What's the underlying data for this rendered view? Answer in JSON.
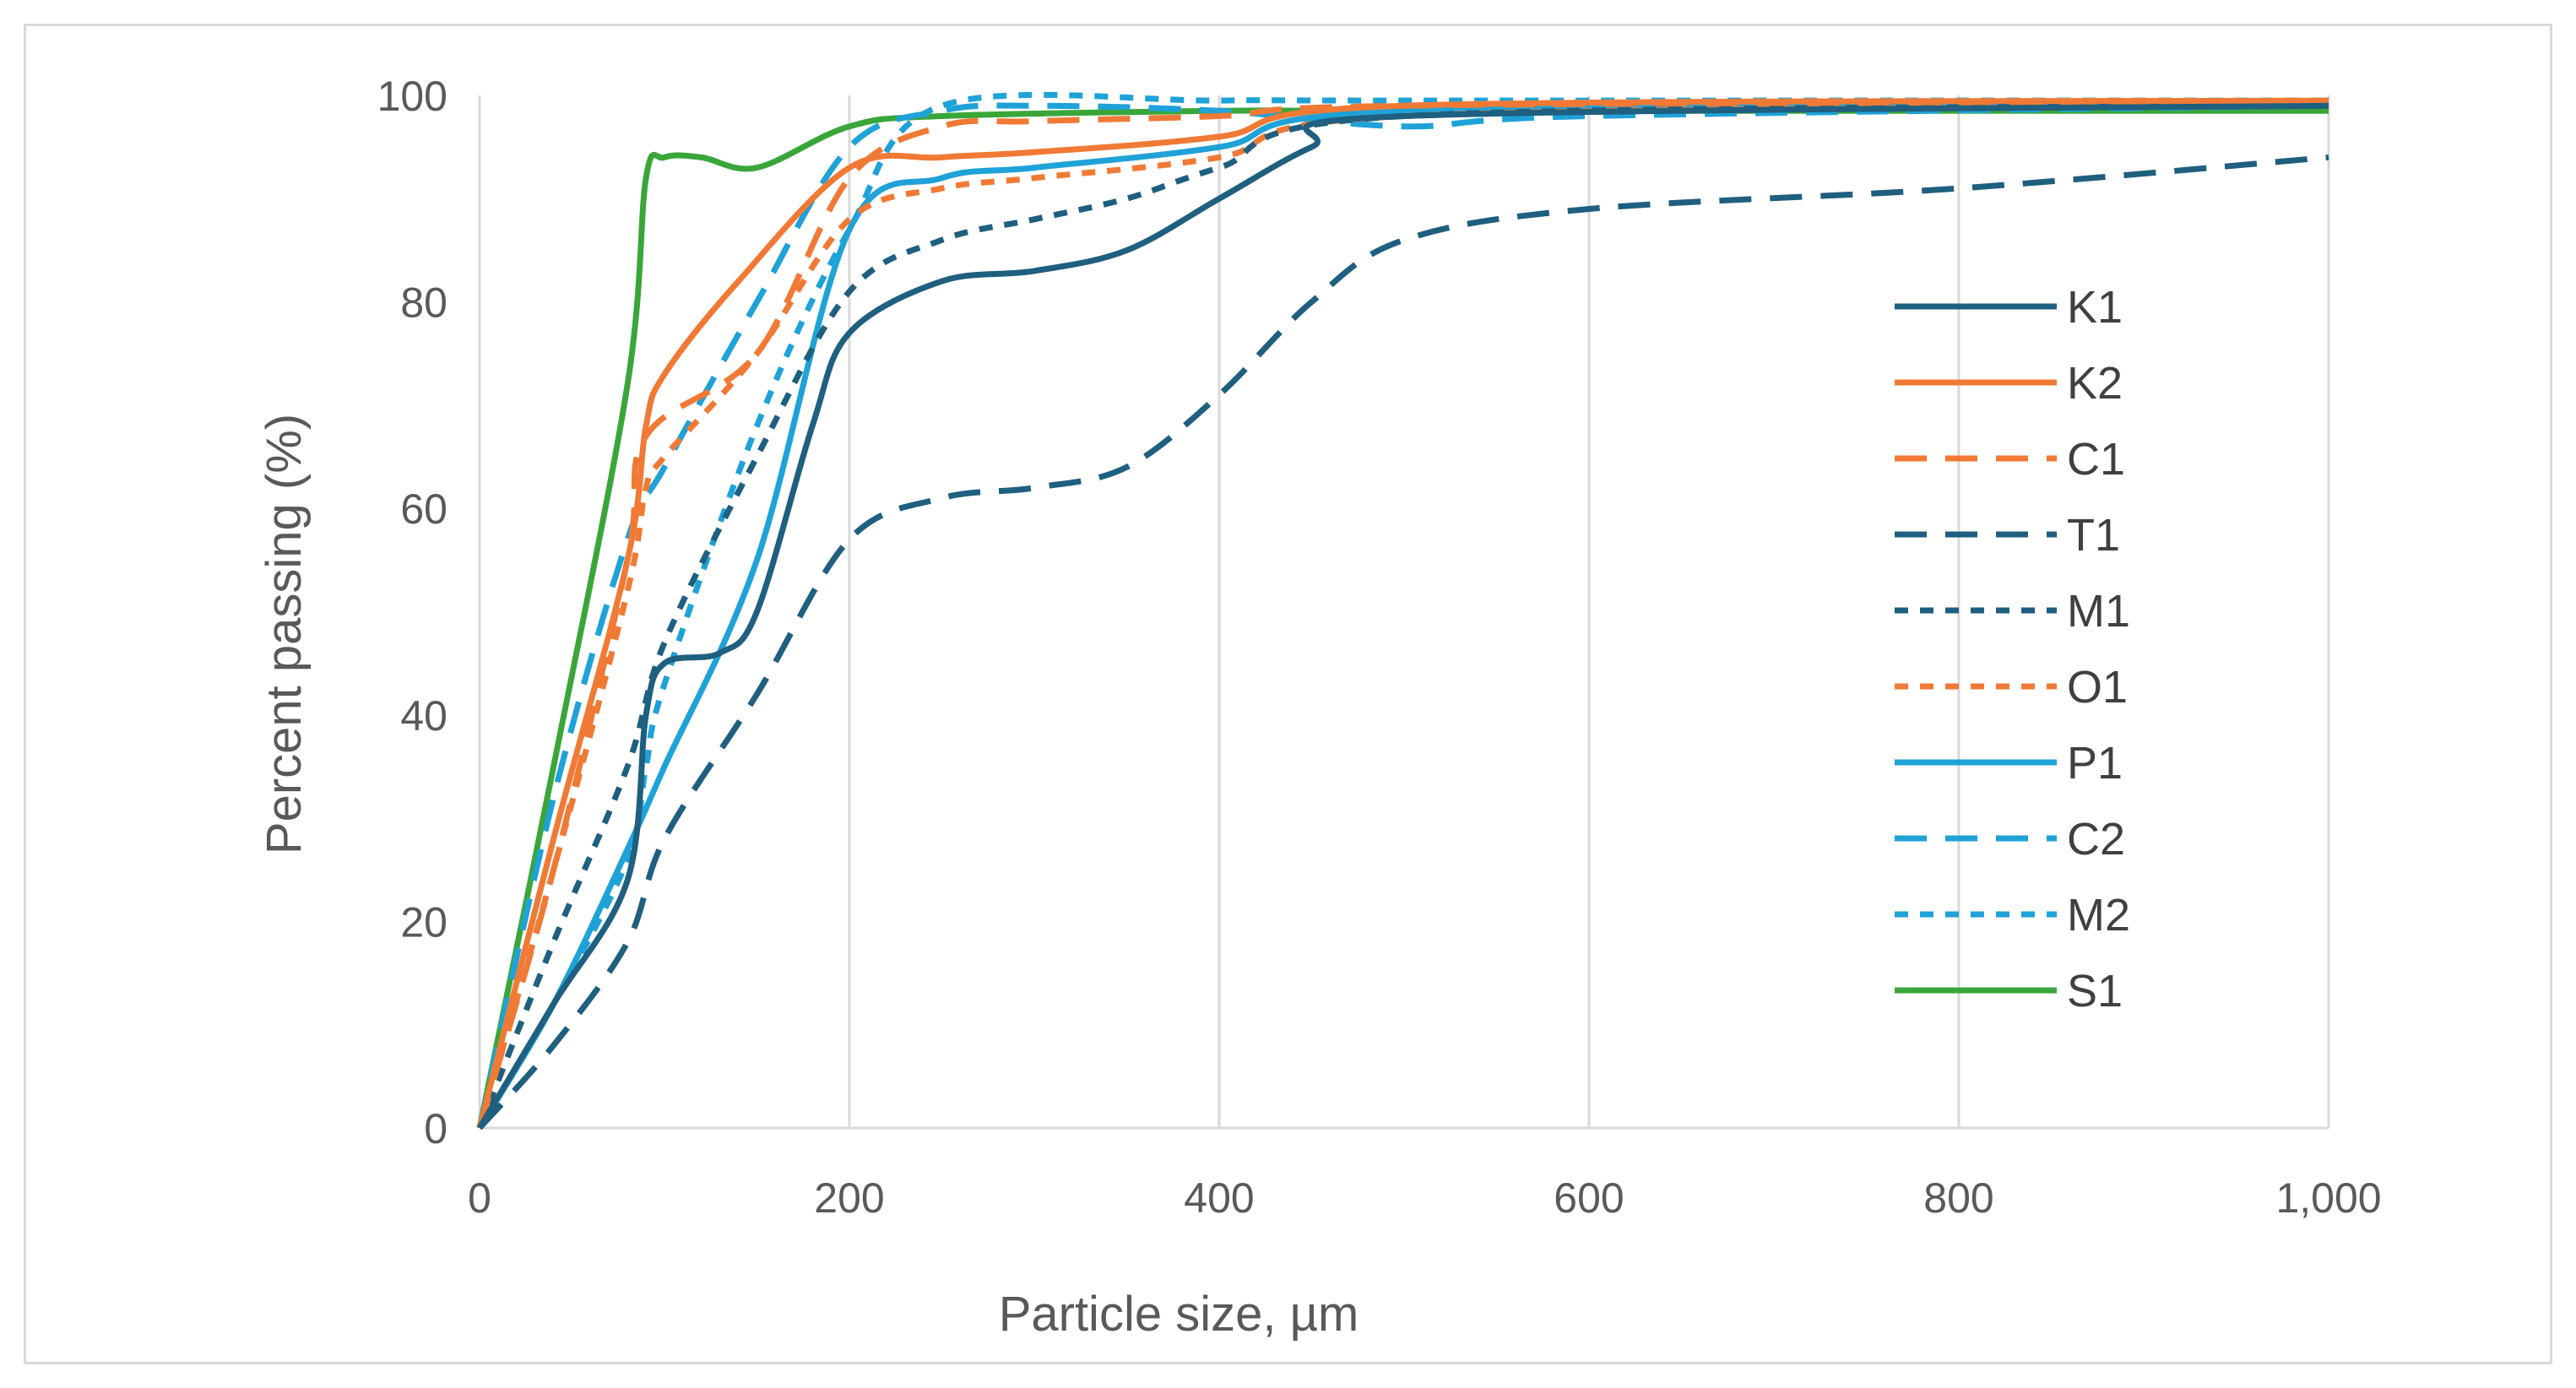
{
  "chart_data": {
    "type": "line",
    "title": "",
    "xlabel": "Particle size, µm",
    "ylabel": "Percent passing (%)",
    "xlim": [
      0,
      1000
    ],
    "ylim": [
      0,
      100
    ],
    "xticks": [
      0,
      200,
      400,
      600,
      800,
      1000
    ],
    "xtick_labels": [
      "0",
      "200",
      "400",
      "600",
      "800",
      "1,000"
    ],
    "yticks": [
      0,
      20,
      40,
      60,
      80,
      100
    ],
    "ytick_labels": [
      "0",
      "20",
      "40",
      "60",
      "80",
      "100"
    ],
    "grid": "vertical",
    "legend_position": "right",
    "series": [
      {
        "name": "K1",
        "color": "#1f5f7f",
        "dash": "solid",
        "x": [
          0,
          40,
          80,
          90,
          100,
          130,
          150,
          180,
          200,
          250,
          300,
          350,
          400,
          450,
          500,
          1000
        ],
        "y": [
          0,
          12,
          24,
          40,
          45,
          46,
          50,
          68,
          77,
          82,
          83,
          85,
          90,
          95,
          98,
          99
        ]
      },
      {
        "name": "K2",
        "color": "#f07a35",
        "dash": "solid",
        "x": [
          0,
          40,
          80,
          90,
          100,
          140,
          200,
          250,
          300,
          400,
          500,
          1000
        ],
        "y": [
          0,
          28,
          55,
          68,
          73,
          82,
          93,
          94,
          94.5,
          96,
          99,
          99.5
        ]
      },
      {
        "name": "C1",
        "color": "#f07a35",
        "dash": "long",
        "x": [
          0,
          40,
          80,
          90,
          150,
          200,
          250,
          300,
          400,
          500,
          1000
        ],
        "y": [
          0,
          25,
          55,
          67,
          75,
          92,
          97,
          97.5,
          98,
          99,
          99.5
        ]
      },
      {
        "name": "T1",
        "color": "#1f5f7f",
        "dash": "long",
        "x": [
          0,
          40,
          80,
          100,
          150,
          200,
          250,
          300,
          350,
          400,
          450,
          500,
          600,
          800,
          1000
        ],
        "y": [
          0,
          8,
          18,
          28,
          42,
          57,
          61,
          62,
          64,
          71,
          80,
          86,
          89,
          91,
          94
        ]
      },
      {
        "name": "M1",
        "color": "#1f5f7f",
        "dash": "short",
        "x": [
          0,
          40,
          80,
          100,
          150,
          200,
          250,
          300,
          350,
          400,
          500,
          1000
        ],
        "y": [
          0,
          18,
          35,
          47,
          65,
          81,
          86,
          88,
          90,
          93,
          98,
          99
        ]
      },
      {
        "name": "O1",
        "color": "#f07a35",
        "dash": "short",
        "x": [
          0,
          40,
          80,
          90,
          100,
          150,
          200,
          250,
          300,
          400,
          500,
          1000
        ],
        "y": [
          0,
          25,
          52,
          62,
          65,
          75,
          88,
          91,
          92,
          94,
          98,
          99
        ]
      },
      {
        "name": "P1",
        "color": "#1ea2d8",
        "dash": "solid",
        "x": [
          0,
          40,
          80,
          100,
          150,
          200,
          250,
          300,
          400,
          500,
          1000
        ],
        "y": [
          0,
          12,
          27,
          35,
          55,
          87,
          92,
          93,
          95,
          98.5,
          99
        ]
      },
      {
        "name": "C2",
        "color": "#1ea2d8",
        "dash": "long",
        "x": [
          0,
          40,
          80,
          100,
          150,
          200,
          250,
          300,
          400,
          500,
          600,
          1000
        ],
        "y": [
          0,
          32,
          57,
          64,
          80,
          95,
          98.5,
          99,
          98.5,
          97,
          98,
          99
        ]
      },
      {
        "name": "M2",
        "color": "#1ea2d8",
        "dash": "short",
        "x": [
          0,
          40,
          80,
          90,
          100,
          150,
          200,
          250,
          400,
          500,
          1000
        ],
        "y": [
          0,
          12,
          26,
          35,
          43,
          68,
          87,
          99,
          99.5,
          99.5,
          99.5
        ]
      },
      {
        "name": "S1",
        "color": "#3aa63a",
        "dash": "solid",
        "x": [
          0,
          40,
          80,
          90,
          100,
          120,
          150,
          200,
          250,
          400,
          500,
          1000
        ],
        "y": [
          0,
          35,
          72,
          92,
          94,
          94,
          93,
          97,
          98,
          98.5,
          98.5,
          98.5
        ]
      }
    ]
  }
}
